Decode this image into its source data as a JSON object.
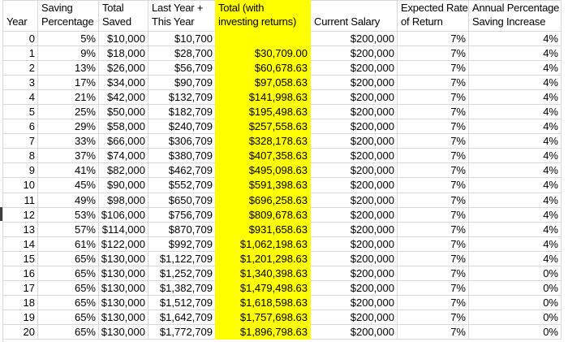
{
  "app": {
    "type": "spreadsheet",
    "description": "Retirement savings projection table"
  },
  "colors": {
    "highlight_column": "#ffff00",
    "gridline": "#d8d8d8",
    "text": "#000000",
    "row_marker": "#3f3f3f"
  },
  "selection": {
    "marker_row_index": 12
  },
  "table": {
    "columns": [
      {
        "id": "year",
        "lines": [
          "Year"
        ],
        "highlight": false
      },
      {
        "id": "saving-percentage",
        "lines": [
          "Saving",
          "Percentage"
        ],
        "highlight": false
      },
      {
        "id": "total-saved",
        "lines": [
          "Total",
          "Saved"
        ],
        "highlight": false
      },
      {
        "id": "last-year-plus-this-year",
        "lines": [
          "Last Year +",
          "This Year"
        ],
        "highlight": false
      },
      {
        "id": "total-with-investing-returns",
        "lines": [
          "Total (with",
          "investing returns)"
        ],
        "highlight": true
      },
      {
        "id": "current-salary",
        "lines": [
          "Current Salary"
        ],
        "highlight": false
      },
      {
        "id": "expected-rate-of-return",
        "lines": [
          "Expected Rate",
          "of Return"
        ],
        "highlight": false
      },
      {
        "id": "annual-percentage-saving-increase",
        "lines": [
          "Annual Percentage",
          "Saving Increase"
        ],
        "highlight": false
      }
    ],
    "rows": [
      [
        "0",
        "5%",
        "$10,000",
        "$10,700",
        "",
        "$200,000",
        "7%",
        "4%"
      ],
      [
        "1",
        "9%",
        "$18,000",
        "$28,700",
        "$30,709.00",
        "$200,000",
        "7%",
        "4%"
      ],
      [
        "2",
        "13%",
        "$26,000",
        "$56,709",
        "$60,678.63",
        "$200,000",
        "7%",
        "4%"
      ],
      [
        "3",
        "17%",
        "$34,000",
        "$90,709",
        "$97,058.63",
        "$200,000",
        "7%",
        "4%"
      ],
      [
        "4",
        "21%",
        "$42,000",
        "$132,709",
        "$141,998.63",
        "$200,000",
        "7%",
        "4%"
      ],
      [
        "5",
        "25%",
        "$50,000",
        "$182,709",
        "$195,498.63",
        "$200,000",
        "7%",
        "4%"
      ],
      [
        "6",
        "29%",
        "$58,000",
        "$240,709",
        "$257,558.63",
        "$200,000",
        "7%",
        "4%"
      ],
      [
        "7",
        "33%",
        "$66,000",
        "$306,709",
        "$328,178.63",
        "$200,000",
        "7%",
        "4%"
      ],
      [
        "8",
        "37%",
        "$74,000",
        "$380,709",
        "$407,358.63",
        "$200,000",
        "7%",
        "4%"
      ],
      [
        "9",
        "41%",
        "$82,000",
        "$462,709",
        "$495,098.63",
        "$200,000",
        "7%",
        "4%"
      ],
      [
        "10",
        "45%",
        "$90,000",
        "$552,709",
        "$591,398.63",
        "$200,000",
        "7%",
        "4%"
      ],
      [
        "11",
        "49%",
        "$98,000",
        "$650,709",
        "$696,258.63",
        "$200,000",
        "7%",
        "4%"
      ],
      [
        "12",
        "53%",
        "$106,000",
        "$756,709",
        "$809,678.63",
        "$200,000",
        "7%",
        "4%"
      ],
      [
        "13",
        "57%",
        "$114,000",
        "$870,709",
        "$931,658.63",
        "$200,000",
        "7%",
        "4%"
      ],
      [
        "14",
        "61%",
        "$122,000",
        "$992,709",
        "$1,062,198.63",
        "$200,000",
        "7%",
        "4%"
      ],
      [
        "15",
        "65%",
        "$130,000",
        "$1,122,709",
        "$1,201,298.63",
        "$200,000",
        "7%",
        "4%"
      ],
      [
        "16",
        "65%",
        "$130,000",
        "$1,252,709",
        "$1,340,398.63",
        "$200,000",
        "7%",
        "0%"
      ],
      [
        "17",
        "65%",
        "$130,000",
        "$1,382,709",
        "$1,479,498.63",
        "$200,000",
        "7%",
        "0%"
      ],
      [
        "18",
        "65%",
        "$130,000",
        "$1,512,709",
        "$1,618,598.63",
        "$200,000",
        "7%",
        "0%"
      ],
      [
        "19",
        "65%",
        "$130,000",
        "$1,642,709",
        "$1,757,698.63",
        "$200,000",
        "7%",
        "0%"
      ],
      [
        "20",
        "65%",
        "$130,000",
        "$1,772,709",
        "$1,896,798.63",
        "$200,000",
        "7%",
        "0%"
      ]
    ]
  }
}
